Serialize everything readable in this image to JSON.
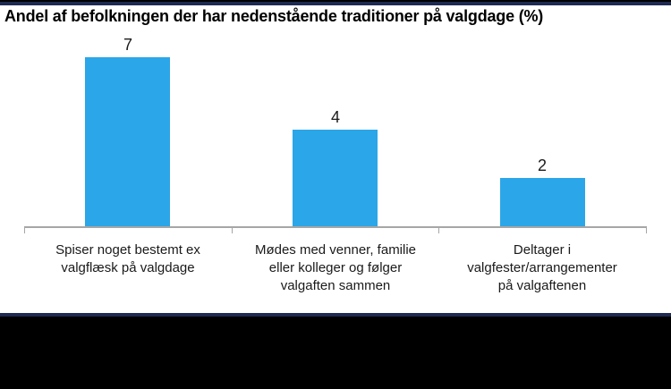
{
  "title": "Andel af befolkningen der har nedenstående traditioner på valgdage (%)",
  "chart_data": {
    "type": "bar",
    "title": "Andel af befolkningen der har nedenstående traditioner på valgdage (%)",
    "categories": [
      "Spiser noget bestemt ex valgflæsk på valgdage",
      "Mødes med venner, familie eller kolleger og følger valgaften sammen",
      "Deltager i valgfester/arrangementer på valgaftenen"
    ],
    "category_label_lines": [
      [
        "Spiser noget bestemt ex",
        "valgflæsk på valgdage"
      ],
      [
        "Mødes med venner, familie",
        "eller kolleger og følger",
        "valgaften sammen"
      ],
      [
        "Deltager i",
        "valgfester/arrangementer",
        "på valgaftenen"
      ]
    ],
    "values": [
      7,
      4,
      2
    ],
    "data_labels": [
      "7",
      "4",
      "2"
    ],
    "xlabel": "",
    "ylabel": "",
    "ylim": [
      0,
      7
    ],
    "grid": false,
    "legend": false
  },
  "colors": {
    "bar": "#2BA6E8",
    "axis_line": "#A6A6A6",
    "label_text": "#1A1A1A",
    "title_text": "#000000",
    "navy_band": "#1F2A52",
    "black_band": "#000000"
  }
}
